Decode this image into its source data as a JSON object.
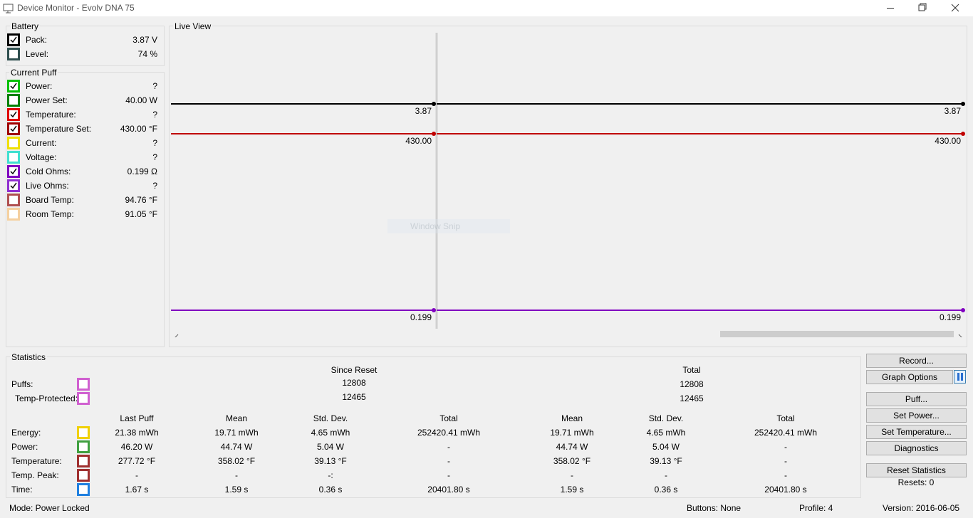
{
  "window": {
    "title": "Device Monitor - Evolv DNA 75"
  },
  "battery": {
    "title": "Battery",
    "rows": [
      {
        "label": "Pack:",
        "value": "3.87 V",
        "checked": true,
        "color": "#000000"
      },
      {
        "label": "Level:",
        "value": "74 %",
        "checked": false,
        "color": "#2f4f4f"
      }
    ]
  },
  "current_puff": {
    "title": "Current Puff",
    "rows": [
      {
        "label": "Power:",
        "value": "?",
        "checked": true,
        "color": "#00c000"
      },
      {
        "label": "Power Set:",
        "value": "40.00 W",
        "checked": false,
        "color": "#008000"
      },
      {
        "label": "Temperature:",
        "value": "?",
        "checked": true,
        "color": "#e00000"
      },
      {
        "label": "Temperature Set:",
        "value": "430.00 °F",
        "checked": true,
        "color": "#a00000"
      },
      {
        "label": "Current:",
        "value": "?",
        "checked": false,
        "color": "#f0e000"
      },
      {
        "label": "Voltage:",
        "value": "?",
        "checked": false,
        "color": "#40e0d0"
      },
      {
        "label": "Cold Ohms:",
        "value": "0.199 Ω",
        "checked": true,
        "color": "#8000c0"
      },
      {
        "label": "Live Ohms:",
        "value": "?",
        "checked": true,
        "color": "#9030d0"
      },
      {
        "label": "Board Temp:",
        "value": "94.76 °F",
        "checked": false,
        "color": "#b05050"
      },
      {
        "label": "Room Temp:",
        "value": "91.05 °F",
        "checked": false,
        "color": "#f5d0a0"
      }
    ]
  },
  "live_view": {
    "title": "Live View",
    "overlay": "Window Snip",
    "traces": [
      {
        "label": "3.87",
        "color": "#000000"
      },
      {
        "label": "430.00",
        "color": "#c00000"
      },
      {
        "label": "0.199",
        "color": "#8000c0"
      }
    ]
  },
  "statistics": {
    "title": "Statistics",
    "since_reset": "Since Reset",
    "total": "Total",
    "counts": [
      {
        "label": "Puffs:",
        "color": "#d060d0",
        "since_reset": "12808",
        "total": "12808"
      },
      {
        "label": "Temp-Protected:",
        "color": "#d060d0",
        "since_reset": "12465",
        "total": "12465"
      }
    ],
    "columns": [
      "Last Puff",
      "Mean",
      "Std. Dev.",
      "Total",
      "Mean",
      "Std. Dev.",
      "Total"
    ],
    "rows": [
      {
        "label": "Energy:",
        "color": "#f0d000",
        "cells": [
          "21.38 mWh",
          "19.71 mWh",
          "4.65 mWh",
          "252420.41 mWh",
          "19.71 mWh",
          "4.65 mWh",
          "252420.41 mWh"
        ]
      },
      {
        "label": "Power:",
        "color": "#40a040",
        "cells": [
          "46.20 W",
          "44.74 W",
          "5.04 W",
          "-",
          "44.74 W",
          "5.04 W",
          "-"
        ]
      },
      {
        "label": "Temperature:",
        "color": "#a03030",
        "cells": [
          "277.72 °F",
          "358.02 °F",
          "39.13 °F",
          "-",
          "358.02 °F",
          "39.13 °F",
          "-"
        ]
      },
      {
        "label": "Temp. Peak:",
        "color": "#a03030",
        "cells": [
          "-",
          "-",
          "-:",
          "-",
          "-",
          "-",
          "-"
        ]
      },
      {
        "label": "Time:",
        "color": "#2080e0",
        "cells": [
          "1.67 s",
          "1.59 s",
          "0.36 s",
          "20401.80 s",
          "1.59 s",
          "0.36 s",
          "20401.80 s"
        ]
      }
    ]
  },
  "buttons": [
    "Record...",
    "Graph Options",
    "Puff...",
    "Set Power...",
    "Set Temperature...",
    "Diagnostics",
    "Reset Statistics"
  ],
  "resets": "Resets: 0",
  "status": {
    "mode": "Mode: Power Locked",
    "buttons": "Buttons: None",
    "profile": "Profile: 4",
    "version": "Version: 2016-06-05"
  }
}
